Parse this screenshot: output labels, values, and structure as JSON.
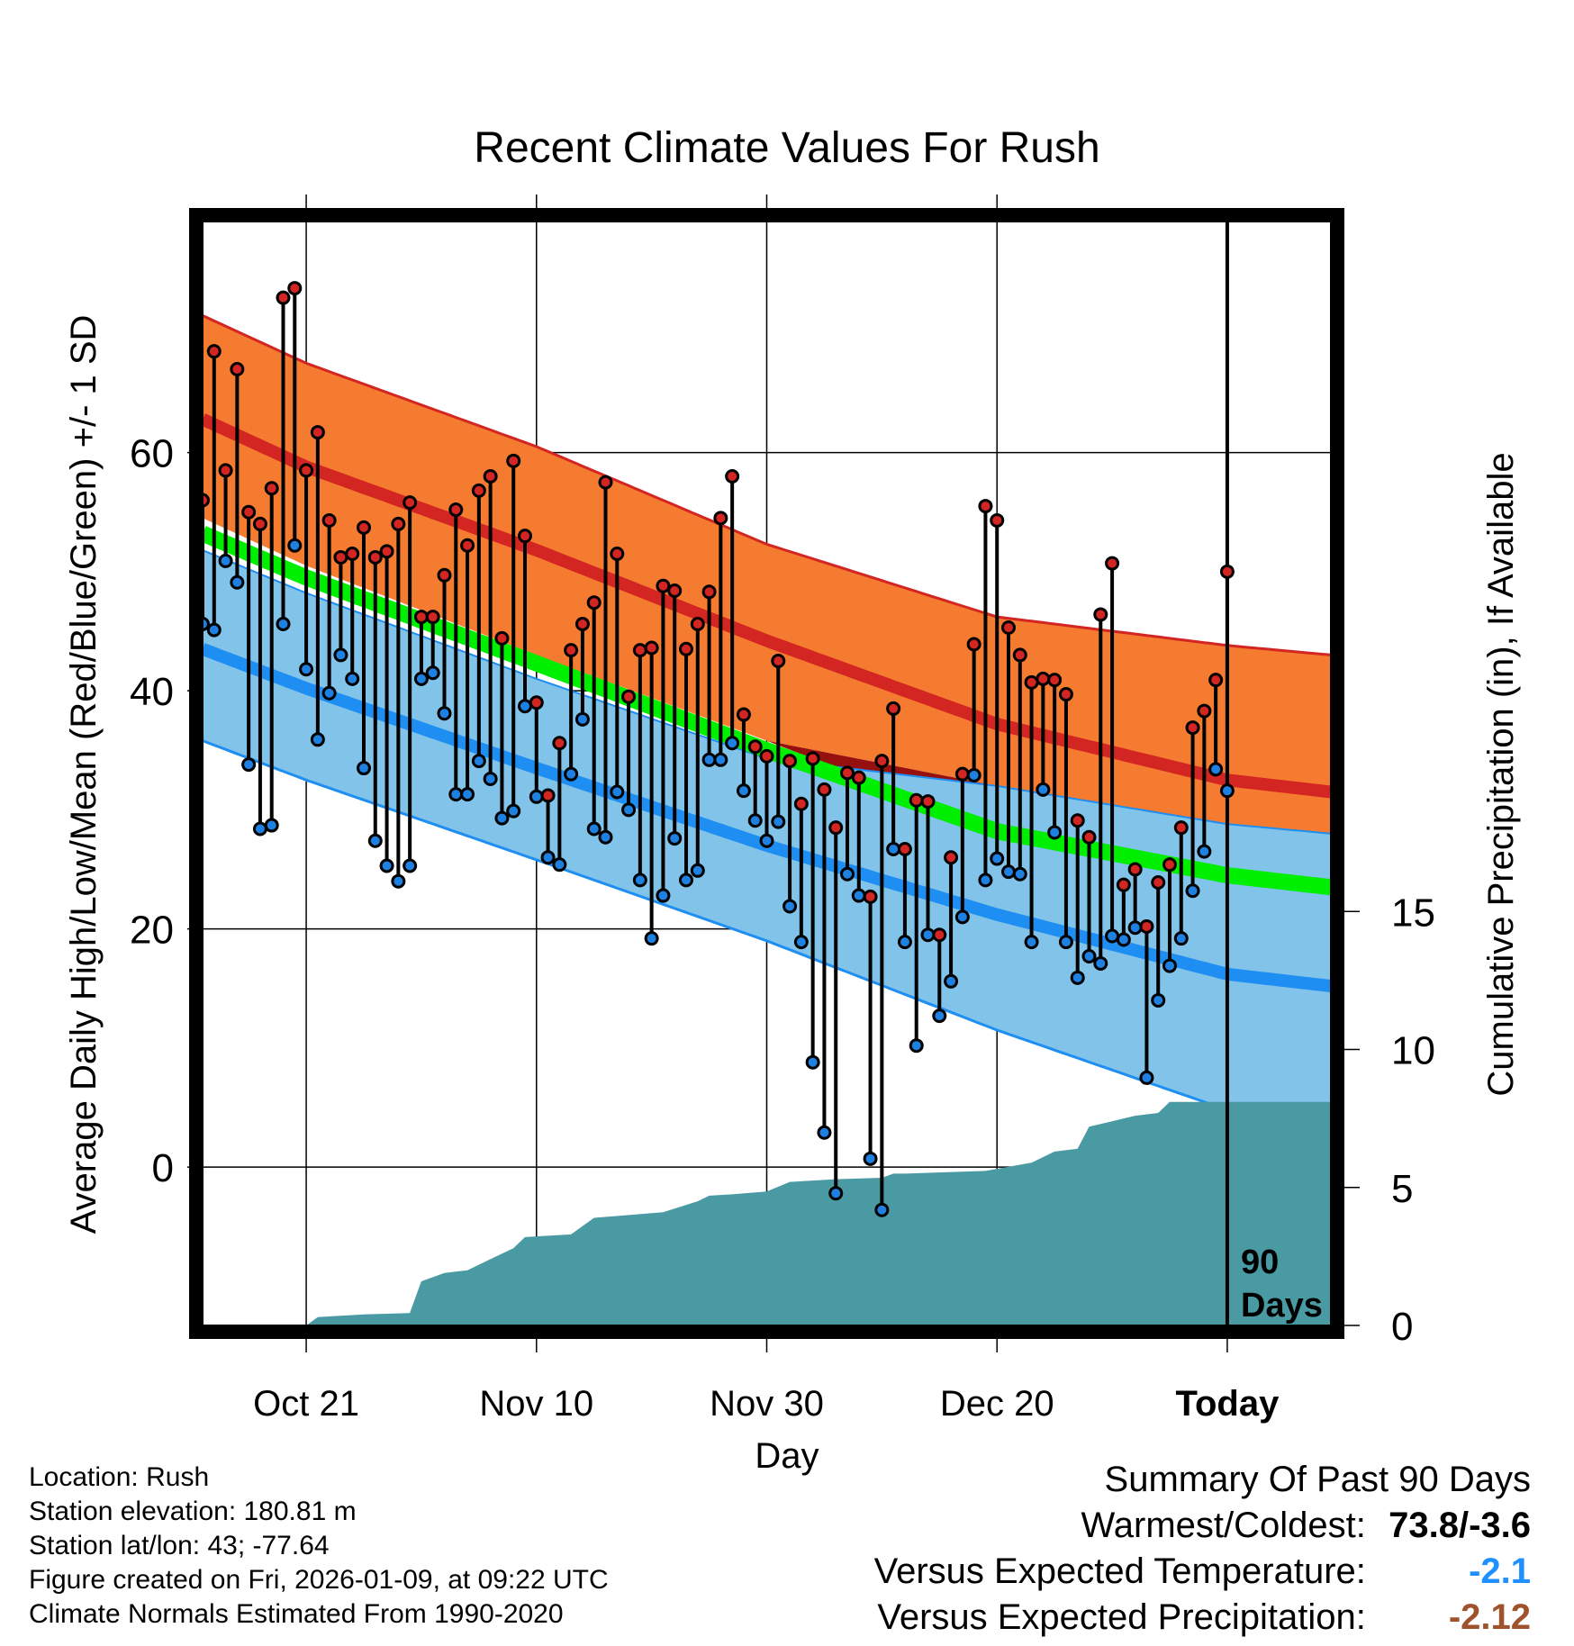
{
  "colors": {
    "normal_high_band": "#f47b30",
    "normal_high_line": "#d32522",
    "normal_low_band": "#82c3ea",
    "normal_low_line": "#1e8ef2",
    "normal_mean_line": "#00ee00",
    "above_mean_fill": "#961010",
    "precip_fill": "#4a9aa4",
    "high_dot": "#d32522",
    "low_dot": "#1e80e0",
    "temp_anomaly": "#1e90ff",
    "precip_anomaly": "#a0522d"
  },
  "chart_data": {
    "type": "line",
    "title": "Recent Climate Values For Rush",
    "xlabel": "Day",
    "ylabel": "Average Daily High/Low/Mean (Red/Blue/Green) +/- 1 SD",
    "y2label": "Cumulative Precipitation (in), If Available",
    "x_day_range": [
      -89,
      9
    ],
    "ylim": [
      -13.3,
      79.4
    ],
    "y_ticks": [
      0,
      20,
      40,
      60
    ],
    "y_minor_ticks": [
      -10,
      10,
      30,
      50,
      70
    ],
    "y2lim": [
      0,
      40
    ],
    "y2_ticks": [
      0,
      5,
      10,
      15
    ],
    "x_ticks": [
      {
        "day": -80,
        "label": "Oct 21"
      },
      {
        "day": -60,
        "label": "Nov 10"
      },
      {
        "day": -40,
        "label": "Nov 30"
      },
      {
        "day": -20,
        "label": "Dec 20"
      },
      {
        "day": 0,
        "label": "Today"
      }
    ],
    "today_label": "90",
    "today_label2": "Days",
    "normals": {
      "day": [
        -89,
        -80,
        -60,
        -40,
        -20,
        0,
        9
      ],
      "high_plus_sd": [
        71.5,
        67.5,
        60.5,
        52.3,
        46.2,
        43.8,
        43.0
      ],
      "high_mean": [
        62.8,
        58.8,
        51.8,
        44.2,
        37.2,
        32.5,
        31.5
      ],
      "high_minus_sd": [
        54.5,
        50.5,
        43.0,
        35.8,
        28.3,
        21.5,
        20.0
      ],
      "mean": [
        53.2,
        49.5,
        42.3,
        35.0,
        28.2,
        24.5,
        23.5
      ],
      "low_plus_sd": [
        51.8,
        48.2,
        41.0,
        34.3,
        32.0,
        28.8,
        28.0
      ],
      "low_mean": [
        43.5,
        40.2,
        33.5,
        27.0,
        21.2,
        16.2,
        15.2
      ],
      "low_minus_sd": [
        35.8,
        32.5,
        25.8,
        19.0,
        11.5,
        4.8,
        3.0
      ]
    },
    "highs": [
      56,
      68.5,
      58.5,
      67,
      55,
      54,
      57,
      73,
      73.8,
      58.5,
      61.7,
      54.3,
      51.2,
      51.5,
      53.7,
      51.2,
      51.7,
      54,
      55.8,
      46.2,
      46.2,
      49.7,
      55.2,
      52.2,
      56.8,
      58,
      44.4,
      59.3,
      53,
      39,
      31.2,
      35.6,
      43.4,
      45.6,
      47.4,
      57.5,
      51.5,
      39.5,
      43.4,
      43.6,
      48.8,
      48.4,
      43.5,
      45.6,
      48.3,
      54.5,
      58,
      38,
      35.3,
      34.5,
      42.5,
      34.1,
      30.5,
      34.3,
      31.7,
      28.5,
      33.1,
      32.7,
      22.7,
      34.1,
      38.5,
      26.7,
      30.8,
      30.7,
      19.5,
      26,
      33,
      43.9,
      55.5,
      54.3,
      45.3,
      43,
      40.7,
      41,
      40.9,
      39.7,
      29.1,
      27.7,
      46.4,
      50.7,
      23.7,
      25,
      20.2,
      23.9,
      25.4,
      28.5,
      36.9,
      38.3,
      40.9,
      50
    ],
    "lows": [
      45.6,
      45.1,
      50.9,
      49.1,
      33.8,
      28.4,
      28.7,
      45.6,
      52.2,
      41.8,
      35.9,
      39.8,
      43,
      41,
      33.5,
      27.4,
      25.3,
      24,
      25.3,
      41,
      41.5,
      38.1,
      31.3,
      31.3,
      34.1,
      32.6,
      29.3,
      29.9,
      38.7,
      31.1,
      26,
      25.4,
      33,
      37.6,
      28.4,
      27.7,
      31.5,
      30,
      24.1,
      19.2,
      22.8,
      27.6,
      24.1,
      24.9,
      34.2,
      34.2,
      35.6,
      31.6,
      29.1,
      27.4,
      29,
      21.9,
      18.9,
      8.8,
      2.9,
      -2.2,
      24.6,
      22.8,
      0.7,
      -3.6,
      26.7,
      18.9,
      10.2,
      19.5,
      12.7,
      15.6,
      21,
      32.9,
      24.1,
      25.9,
      24.8,
      24.6,
      18.9,
      31.7,
      28.1,
      18.9,
      15.9,
      17.7,
      17.1,
      19.4,
      19.1,
      20.1,
      7.5,
      14,
      16.9,
      19.2,
      23.2,
      26.5,
      33.4,
      31.6
    ],
    "precip": {
      "day": [
        -89,
        -80,
        -79,
        -75,
        -71,
        -70,
        -68,
        -66,
        -64,
        -62,
        -61,
        -57,
        -55,
        -52,
        -49,
        -46,
        -45,
        -43,
        -40,
        -38,
        -34,
        -30,
        -29,
        -28,
        -21,
        -17,
        -15,
        -13,
        -12,
        -10,
        -9,
        -8,
        -6,
        -5,
        0,
        9
      ],
      "value": [
        0,
        0,
        0.3,
        0.4,
        0.45,
        1.6,
        1.9,
        2.0,
        2.4,
        2.8,
        3.2,
        3.3,
        3.9,
        4.0,
        4.1,
        4.5,
        4.7,
        4.75,
        4.85,
        5.2,
        5.3,
        5.35,
        5.5,
        5.5,
        5.6,
        5.9,
        6.3,
        6.4,
        7.2,
        7.4,
        7.5,
        7.6,
        7.7,
        8.1,
        8.1,
        8.1
      ]
    }
  },
  "meta": {
    "location": "Location: Rush",
    "elevation": "Station elevation: 180.81 m",
    "latlon": "Station lat/lon: 43; -77.64",
    "created": "Figure created on Fri, 2026-01-09, at 09:22 UTC",
    "normals": "Climate Normals Estimated From 1990-2020"
  },
  "summary": {
    "title": "Summary Of Past 90 Days",
    "warmest_label": "Warmest/Coldest:",
    "warmest_value": "73.8/-3.6",
    "temp_label": "Versus Expected Temperature:",
    "temp_value": "-2.1",
    "precip_label": "Versus Expected Precipitation:",
    "precip_value": "-2.12"
  }
}
